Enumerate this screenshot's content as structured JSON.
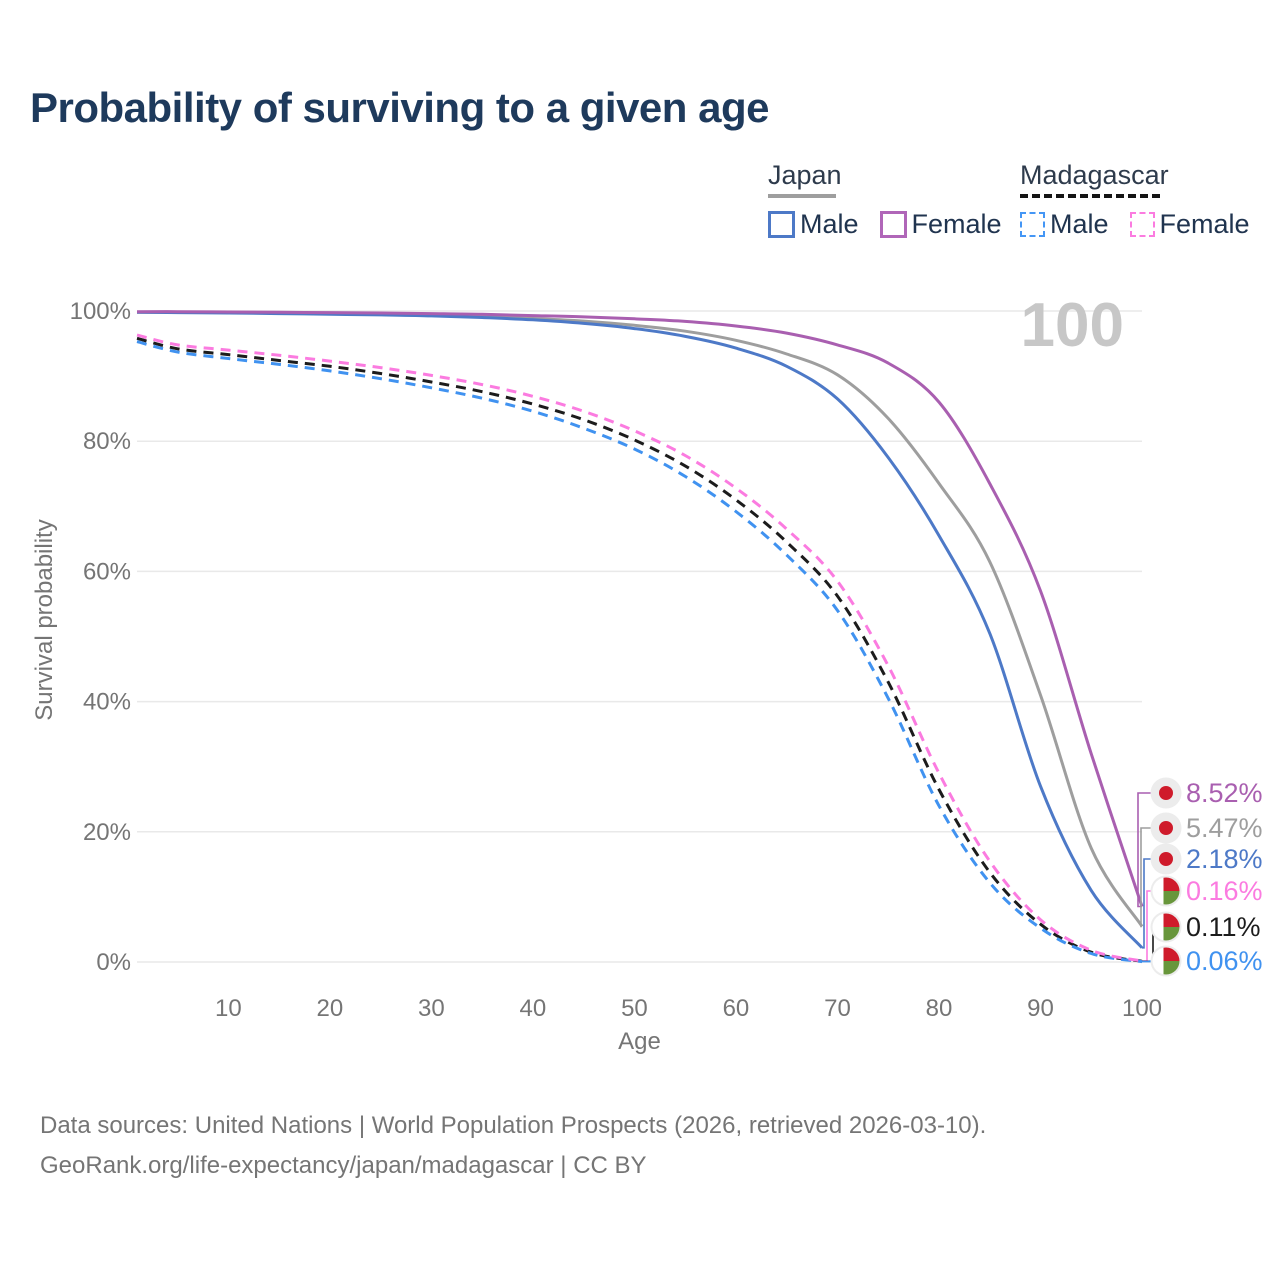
{
  "title": "Probability of surviving to a given age",
  "legend": {
    "groups": [
      {
        "label": "Japan",
        "line_style": "solid",
        "underline_color": "#9e9e9e",
        "items": [
          {
            "label": "Male",
            "color": "#4d79c7"
          },
          {
            "label": "Female",
            "color": "#b066b8"
          }
        ]
      },
      {
        "label": "Madagascar",
        "line_style": "dashed",
        "underline_color": "#141414",
        "items": [
          {
            "label": "Male",
            "color": "#4496f5"
          },
          {
            "label": "Female",
            "color": "#fb7be0"
          }
        ]
      }
    ]
  },
  "chart_data": {
    "type": "line",
    "xlabel": "Age",
    "ylabel": "Survival probability",
    "xlim": [
      1,
      100
    ],
    "ylim": [
      0,
      100
    ],
    "xticks": [
      10,
      20,
      30,
      40,
      50,
      60,
      70,
      80,
      90,
      100
    ],
    "yticks": [
      0,
      20,
      40,
      60,
      80,
      100
    ],
    "ytick_suffix": "%",
    "grid": "horizontal",
    "hover_label": "100",
    "x": [
      1,
      5,
      10,
      15,
      20,
      25,
      30,
      35,
      40,
      45,
      50,
      55,
      60,
      65,
      70,
      75,
      80,
      85,
      90,
      95,
      100
    ],
    "series": [
      {
        "id": "japan-female",
        "name": "Japan Female",
        "country": "japan",
        "sex": "female",
        "color": "#a95fb0",
        "dashed": false,
        "end_label": "8.52%",
        "values": [
          99.9,
          99.9,
          99.85,
          99.8,
          99.75,
          99.7,
          99.6,
          99.5,
          99.3,
          99.1,
          98.8,
          98.4,
          97.7,
          96.6,
          94.8,
          92.0,
          86.0,
          73.5,
          57.0,
          32.0,
          8.52
        ]
      },
      {
        "id": "japan-both",
        "name": "Japan Both sexes",
        "country": "japan",
        "sex": "both",
        "color": "#9e9e9e",
        "dashed": false,
        "end_label": "5.47%",
        "values": [
          99.8,
          99.8,
          99.75,
          99.7,
          99.6,
          99.5,
          99.35,
          99.15,
          98.85,
          98.45,
          97.8,
          96.9,
          95.5,
          93.4,
          90.2,
          83.5,
          73.5,
          61.5,
          41.0,
          17.5,
          5.47
        ]
      },
      {
        "id": "japan-male",
        "name": "Japan Male",
        "country": "japan",
        "sex": "male",
        "color": "#4d79c7",
        "dashed": false,
        "end_label": "2.18%",
        "values": [
          99.8,
          99.75,
          99.7,
          99.6,
          99.5,
          99.4,
          99.25,
          99.0,
          98.65,
          98.1,
          97.3,
          96.1,
          94.3,
          91.5,
          86.5,
          77.5,
          65.5,
          50.5,
          27.0,
          11.0,
          2.18
        ]
      },
      {
        "id": "madagascar-female",
        "name": "Madagascar Female",
        "country": "madagascar",
        "sex": "female",
        "color": "#fb7be0",
        "dashed": true,
        "end_label": "0.16%",
        "values": [
          96.3,
          94.8,
          94.0,
          93.2,
          92.3,
          91.3,
          90.1,
          88.7,
          86.9,
          84.6,
          81.6,
          77.8,
          72.8,
          66.5,
          58.5,
          45.5,
          29.0,
          15.5,
          6.5,
          1.8,
          0.16
        ]
      },
      {
        "id": "madagascar-both",
        "name": "Madagascar Both sexes",
        "country": "madagascar",
        "sex": "both",
        "color": "#1c1c1c",
        "dashed": true,
        "end_label": "0.11%",
        "values": [
          95.8,
          94.2,
          93.3,
          92.4,
          91.5,
          90.4,
          89.1,
          87.6,
          85.7,
          83.3,
          80.2,
          76.2,
          71.0,
          64.5,
          56.2,
          43.0,
          26.5,
          13.8,
          5.8,
          1.5,
          0.11
        ]
      },
      {
        "id": "madagascar-male",
        "name": "Madagascar Male",
        "country": "madagascar",
        "sex": "male",
        "color": "#4092f0",
        "dashed": true,
        "end_label": "0.06%",
        "values": [
          95.3,
          93.7,
          92.7,
          91.8,
          90.8,
          89.6,
          88.2,
          86.6,
          84.6,
          82.0,
          78.8,
          74.6,
          69.2,
          62.5,
          54.0,
          40.5,
          24.0,
          12.2,
          5.2,
          1.3,
          0.06
        ]
      }
    ]
  },
  "colors": {
    "title": "#1e3a5c",
    "axis_text": "#757575",
    "gridline": "#e9e9e9",
    "hover_label": "#c7c7c7",
    "badge_bg": "#ececec",
    "flag_red": "#cf1b2b",
    "flag_green": "#68963b",
    "flag_white": "#ffffff"
  },
  "footer": {
    "line1": "Data sources: United Nations | World Population Prospects (2026, retrieved 2026-03-10).",
    "line2": "GeoRank.org/life-expectancy/japan/madagascar | CC BY"
  }
}
